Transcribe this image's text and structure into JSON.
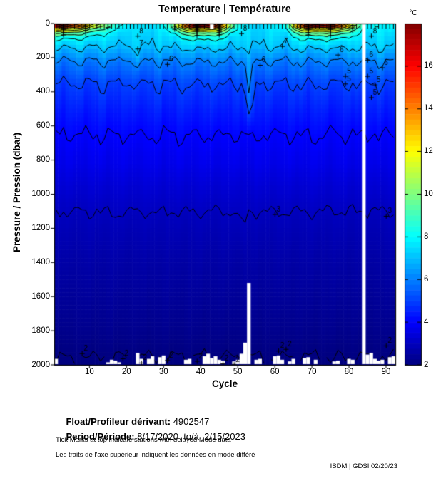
{
  "chart_data": {
    "type": "heatmap",
    "title": "Temperature | Température",
    "xlabel": "Cycle",
    "ylabel": "Pressure / Pression (dbar)",
    "colorbar_label": "°C",
    "colormap": "jet",
    "clim": [
      2,
      18
    ],
    "colorbar_ticks": [
      2,
      4,
      6,
      8,
      10,
      12,
      14,
      16
    ],
    "xlim": [
      1,
      92
    ],
    "ylim": [
      0,
      2000
    ],
    "y_axis_reversed": true,
    "x_ticks": [
      10,
      20,
      30,
      40,
      50,
      60,
      70,
      80,
      90
    ],
    "y_ticks": [
      0,
      200,
      400,
      600,
      800,
      1000,
      1200,
      1400,
      1600,
      1800,
      2000
    ],
    "contour_levels": [
      2,
      3,
      4,
      5,
      6,
      7,
      8,
      9,
      10,
      11,
      12,
      13,
      14,
      15,
      16,
      17
    ],
    "depth_profile": {
      "depths": [
        0,
        40,
        80,
        140,
        220,
        350,
        500,
        650,
        800,
        1000,
        1100,
        1200,
        1400,
        1600,
        1800,
        1950,
        2000
      ],
      "temps": [
        7.6,
        7.45,
        7.3,
        7.0,
        6.0,
        5.0,
        4.45,
        4.0,
        3.7,
        3.2,
        3.0,
        2.85,
        2.6,
        2.4,
        2.2,
        2.0,
        1.97
      ]
    },
    "thermocline_efold_dbar": 45,
    "noise_amplitude": {
      "depths": [
        0,
        60,
        150,
        300,
        600,
        1000,
        1400,
        2000
      ],
      "values": [
        0.1,
        0.35,
        0.45,
        0.35,
        0.18,
        0.09,
        0.07,
        0.06
      ]
    },
    "surface_temp_by_cycle": [
      17.6,
      17.9,
      17.3,
      16.9,
      16.4,
      16.0,
      15.3,
      14.6,
      13.8,
      13.0,
      12.3,
      11.7,
      11.1,
      10.5,
      9.9,
      9.3,
      8.8,
      8.4,
      8.1,
      7.9,
      7.7,
      7.6,
      7.5,
      7.6,
      7.8,
      7.6,
      7.5,
      7.7,
      7.9,
      8.2,
      8.8,
      9.6,
      11.0,
      12.6,
      14.2,
      15.6,
      16.6,
      17.4,
      17.8,
      18.0,
      17.9,
      17.6,
      17.1,
      16.5,
      15.6,
      14.2,
      12.6,
      11.0,
      9.6,
      8.6,
      8.0,
      7.8,
      7.5,
      7.4,
      7.3,
      7.4,
      7.5,
      7.6,
      7.7,
      7.8,
      7.9,
      8.0,
      8.8,
      10.2,
      12.2,
      14.0,
      15.4,
      16.4,
      17.1,
      17.7,
      18.0,
      17.8,
      17.5,
      17.2,
      17.0,
      16.7,
      16.1,
      15.4,
      14.4,
      13.0,
      11.6,
      10.2,
      9.4,
      8.2,
      8.0,
      7.8,
      8.4,
      8.1,
      7.7,
      7.9,
      8.2,
      7.9
    ],
    "anomalies": [
      {
        "c": [
          51.5,
          55.0
        ],
        "d": [
          80,
          700
        ],
        "delta": 1.3
      },
      {
        "c": [
          49.0,
          53.5
        ],
        "d": [
          900,
          1400
        ],
        "delta": 0.12
      },
      {
        "c": [
          22.0,
          24.5
        ],
        "d": [
          100,
          300
        ],
        "delta": 0.5
      }
    ],
    "contour_labels": [
      {
        "c": 24,
        "d": 45,
        "t": "8"
      },
      {
        "c": 24,
        "d": 120,
        "t": "7"
      },
      {
        "c": 32,
        "d": 210,
        "t": "6"
      },
      {
        "c": 52,
        "d": 30,
        "t": "8"
      },
      {
        "c": 63,
        "d": 105,
        "t": "7"
      },
      {
        "c": 57,
        "d": 215,
        "t": "6"
      },
      {
        "c": 78,
        "d": 155,
        "t": "6"
      },
      {
        "c": 80,
        "d": 280,
        "t": "5"
      },
      {
        "c": 80,
        "d": 325,
        "t": "5"
      },
      {
        "c": 87,
        "d": 45,
        "t": "8"
      },
      {
        "c": 86,
        "d": 185,
        "t": "6"
      },
      {
        "c": 90,
        "d": 230,
        "t": "6"
      },
      {
        "c": 86,
        "d": 280,
        "t": "5"
      },
      {
        "c": 88,
        "d": 330,
        "t": "5"
      },
      {
        "c": 87,
        "d": 405,
        "t": "5"
      },
      {
        "c": 61,
        "d": 1090,
        "t": "3"
      },
      {
        "c": 91,
        "d": 1100,
        "t": "3"
      },
      {
        "c": 9,
        "d": 1905,
        "t": "2"
      },
      {
        "c": 20,
        "d": 1935,
        "t": "2"
      },
      {
        "c": 25,
        "d": 1960,
        "t": "2"
      },
      {
        "c": 32,
        "d": 1945,
        "t": "2"
      },
      {
        "c": 40,
        "d": 1950,
        "t": "2"
      },
      {
        "c": 47,
        "d": 1965,
        "t": "2"
      },
      {
        "c": 50,
        "d": 1970,
        "t": "2"
      },
      {
        "c": 62,
        "d": 1890,
        "t": "2"
      },
      {
        "c": 64,
        "d": 1880,
        "t": "2"
      },
      {
        "c": 91,
        "d": 1860,
        "t": "2"
      }
    ],
    "missing_data": {
      "full_column_cycles": [
        84
      ],
      "partial_columns": [
        {
          "cycle": 53,
          "from_dbar": 1520
        },
        {
          "cycle": 52,
          "from_dbar": 1870
        }
      ],
      "top_gaps": [
        {
          "cycle": 43,
          "to_dbar": 28
        }
      ],
      "bottom_gaps": [
        {
          "cycle": 1,
          "from_dbar": 1965
        },
        {
          "cycle": 15,
          "from_dbar": 1985
        },
        {
          "cycle": 16,
          "from_dbar": 1970
        },
        {
          "cycle": 17,
          "from_dbar": 1975
        },
        {
          "cycle": 18,
          "from_dbar": 1985
        },
        {
          "cycle": 23,
          "from_dbar": 1930
        },
        {
          "cycle": 24,
          "from_dbar": 1965
        },
        {
          "cycle": 26,
          "from_dbar": 1965
        },
        {
          "cycle": 27,
          "from_dbar": 1950
        },
        {
          "cycle": 29,
          "from_dbar": 1955
        },
        {
          "cycle": 30,
          "from_dbar": 1945
        },
        {
          "cycle": 36,
          "from_dbar": 1970
        },
        {
          "cycle": 37,
          "from_dbar": 1965
        },
        {
          "cycle": 41,
          "from_dbar": 1950
        },
        {
          "cycle": 42,
          "from_dbar": 1935
        },
        {
          "cycle": 43,
          "from_dbar": 1960
        },
        {
          "cycle": 44,
          "from_dbar": 1950
        },
        {
          "cycle": 45,
          "from_dbar": 1970
        },
        {
          "cycle": 46,
          "from_dbar": 1975
        },
        {
          "cycle": 49,
          "from_dbar": 1980
        },
        {
          "cycle": 50,
          "from_dbar": 1970
        },
        {
          "cycle": 51,
          "from_dbar": 1935
        },
        {
          "cycle": 55,
          "from_dbar": 1970
        },
        {
          "cycle": 56,
          "from_dbar": 1965
        },
        {
          "cycle": 60,
          "from_dbar": 1950
        },
        {
          "cycle": 61,
          "from_dbar": 1945
        },
        {
          "cycle": 62,
          "from_dbar": 1970
        },
        {
          "cycle": 64,
          "from_dbar": 1980
        },
        {
          "cycle": 65,
          "from_dbar": 1965
        },
        {
          "cycle": 68,
          "from_dbar": 1960
        },
        {
          "cycle": 69,
          "from_dbar": 1955
        },
        {
          "cycle": 71,
          "from_dbar": 1970
        },
        {
          "cycle": 76,
          "from_dbar": 1980
        },
        {
          "cycle": 77,
          "from_dbar": 1975
        },
        {
          "cycle": 80,
          "from_dbar": 1965
        },
        {
          "cycle": 81,
          "from_dbar": 1970
        },
        {
          "cycle": 85,
          "from_dbar": 1940
        },
        {
          "cycle": 86,
          "from_dbar": 1930
        },
        {
          "cycle": 87,
          "from_dbar": 1965
        },
        {
          "cycle": 88,
          "from_dbar": 1975
        },
        {
          "cycle": 89,
          "from_dbar": 1970
        },
        {
          "cycle": 91,
          "from_dbar": 1955
        },
        {
          "cycle": 92,
          "from_dbar": 1950
        }
      ]
    },
    "delayed_mode_note": "all cycles marked with top ticks except missing cycle 84"
  },
  "footer": {
    "float_label": "Float/Profileur dérivant:",
    "float_value": " 4902547",
    "period_label": "Period/Période:",
    "period_value": " 8/17/2020  to/à  2/15/2023",
    "note_en": "Tick Marks at top indicate stations with delayed Mode data",
    "note_fr": "Les traits de l'axe supérieur indiquent les données en mode différé",
    "credit": "ISDM | GDSI  02/20/23"
  }
}
